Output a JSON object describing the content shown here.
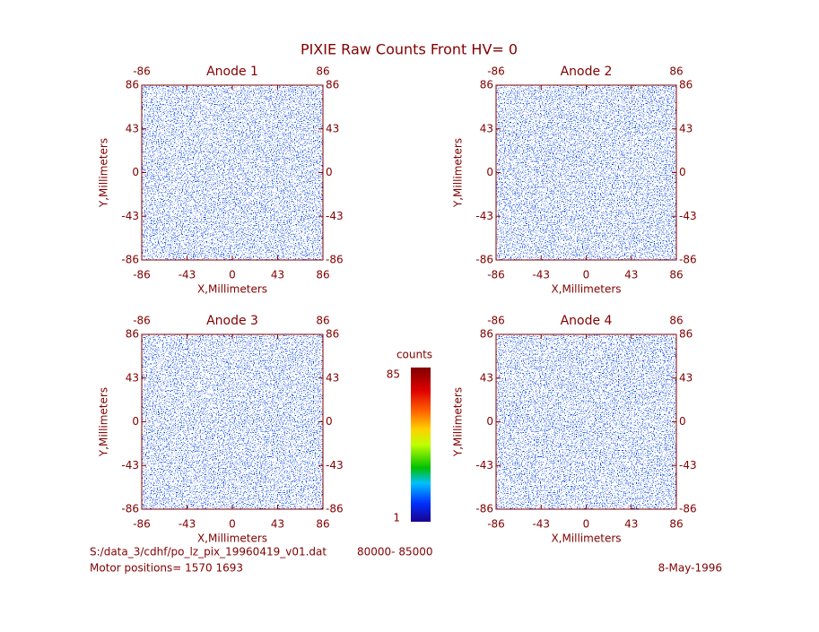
{
  "title": "PIXIE Raw Counts Front HV= 0",
  "chart_data": [
    {
      "type": "heatmap",
      "title": "Anode 1",
      "xlabel": "X,Millimeters",
      "ylabel": "Y,Millimeters",
      "xlim": [
        -86,
        86
      ],
      "ylim": [
        -86,
        86
      ],
      "xticks": [
        -86,
        -43,
        0,
        43,
        86
      ],
      "yticks": [
        -86,
        -43,
        0,
        43,
        86
      ]
    },
    {
      "type": "heatmap",
      "title": "Anode 2",
      "xlabel": "X,Millimeters",
      "ylabel": "Y,Millimeters",
      "xlim": [
        -86,
        86
      ],
      "ylim": [
        -86,
        86
      ],
      "xticks": [
        -86,
        -43,
        0,
        43,
        86
      ],
      "yticks": [
        -86,
        -43,
        0,
        43,
        86
      ]
    },
    {
      "type": "heatmap",
      "title": "Anode 3",
      "xlabel": "X,Millimeters",
      "ylabel": "Y,Millimeters",
      "xlim": [
        -86,
        86
      ],
      "ylim": [
        -86,
        86
      ],
      "xticks": [
        -86,
        -43,
        0,
        43,
        86
      ],
      "yticks": [
        -86,
        -43,
        0,
        43,
        86
      ]
    },
    {
      "type": "heatmap",
      "title": "Anode 4",
      "xlabel": "X,Millimeters",
      "ylabel": "Y,Millimeters",
      "xlim": [
        -86,
        86
      ],
      "ylim": [
        -86,
        86
      ],
      "xticks": [
        -86,
        -43,
        0,
        43,
        86
      ],
      "yticks": [
        -86,
        -43,
        0,
        43,
        86
      ]
    }
  ],
  "colorbar": {
    "label": "counts",
    "lim": [
      1,
      85
    ],
    "ticks": [
      1,
      85
    ]
  },
  "footer": {
    "file": "S:/data_3/cdhf/po_lz_pix_19960419_v01.dat",
    "range": "80000- 85000",
    "motor": "Motor positions= 1570 1693",
    "date": "8-May-1996"
  }
}
